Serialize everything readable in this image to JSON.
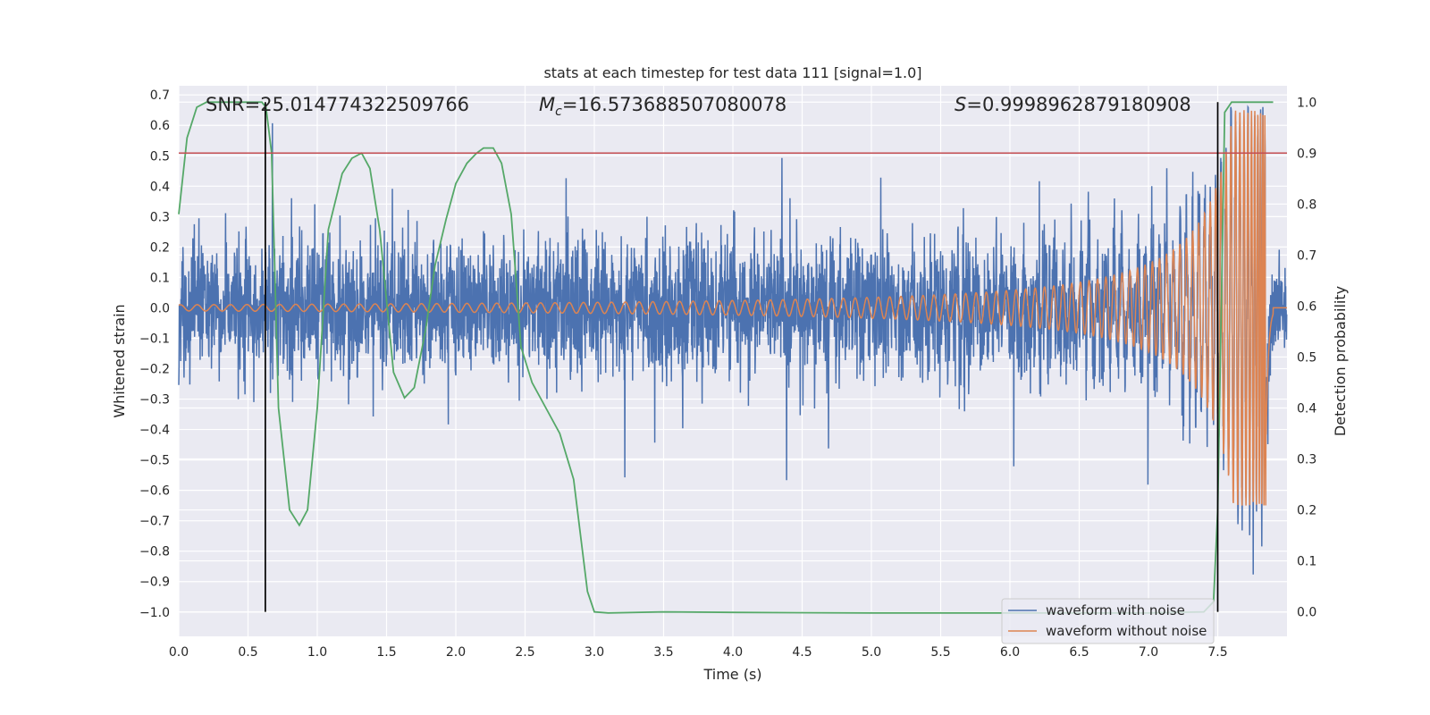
{
  "chart_data": {
    "type": "line",
    "title": "stats at each timestep for test data 111 [signal=1.0]",
    "xlabel": "Time (s)",
    "ylabel": "Whitened strain",
    "y2label": "Detection probability",
    "xlim": [
      0.0,
      8.0
    ],
    "ylim": [
      -1.08,
      0.73
    ],
    "y2lim": [
      -0.048,
      1.032
    ],
    "xticks": [
      0.0,
      0.5,
      1.0,
      1.5,
      2.0,
      2.5,
      3.0,
      3.5,
      4.0,
      4.5,
      5.0,
      5.5,
      6.0,
      6.5,
      7.0,
      7.5
    ],
    "xtick_labels": [
      "0.0",
      "0.5",
      "1.0",
      "1.5",
      "2.0",
      "2.5",
      "3.0",
      "3.5",
      "4.0",
      "4.5",
      "5.0",
      "5.5",
      "6.0",
      "6.5",
      "7.0",
      "7.5"
    ],
    "yticks": [
      0.7,
      0.6,
      0.5,
      0.4,
      0.3,
      0.2,
      0.1,
      0.0,
      -0.1,
      -0.2,
      -0.3,
      -0.4,
      -0.5,
      -0.6,
      -0.7,
      -0.8,
      -0.9,
      -1.0
    ],
    "ytick_labels": [
      "0.7",
      "0.6",
      "0.5",
      "0.4",
      "0.3",
      "0.2",
      "0.1",
      "0.0",
      "−0.1",
      "−0.2",
      "−0.3",
      "−0.4",
      "−0.5",
      "−0.6",
      "−0.7",
      "−0.8",
      "−0.9",
      "−1.0"
    ],
    "y2ticks": [
      1.0,
      0.9,
      0.8,
      0.7,
      0.6,
      0.5,
      0.4,
      0.3,
      0.2,
      0.1,
      0.0
    ],
    "y2tick_labels": [
      "1.0",
      "0.9",
      "0.8",
      "0.7",
      "0.6",
      "0.5",
      "0.4",
      "0.3",
      "0.2",
      "0.1",
      "0.0"
    ],
    "annotations": {
      "snr": "SNR=25.014774322509766",
      "mc_symbol": "M",
      "mc_sub": "c",
      "mc_value": "=16.573688507080078",
      "s_symbol": "S",
      "s_value": "=0.9998962879180908"
    },
    "threshold_prob": 0.9,
    "vlines": [
      0.625,
      7.5
    ],
    "legend": {
      "location": "lower right",
      "entries": [
        {
          "label": "waveform with noise",
          "color": "#4c72b0"
        },
        {
          "label": "waveform without noise",
          "color": "#dd8452"
        }
      ]
    },
    "series": [
      {
        "name": "waveform with noise",
        "axis": "left",
        "color": "#4c72b0",
        "note": "whitened noisy strain; typical envelope about ±0.3 with spikes",
        "envelope": {
          "typical_max": 0.3,
          "typical_min": -0.3,
          "max_spike": 0.66,
          "min_spike": -1.0
        }
      },
      {
        "name": "waveform without noise",
        "axis": "left",
        "color": "#dd8452",
        "note": "chirp signal; amplitude grows from about 0.01 to 0.65 near merger",
        "start_amplitude": 0.01,
        "peak_amplitude": 0.65,
        "peak_time": 7.85,
        "end_time": 7.9
      },
      {
        "name": "detection probability",
        "axis": "right",
        "color": "#55a868",
        "x": [
          0.0,
          0.06,
          0.13,
          0.2,
          0.3,
          0.4,
          0.5,
          0.6,
          0.63,
          0.67,
          0.72,
          0.8,
          0.87,
          0.93,
          1.0,
          1.08,
          1.18,
          1.25,
          1.32,
          1.38,
          1.45,
          1.55,
          1.63,
          1.7,
          1.78,
          1.85,
          1.93,
          2.0,
          2.08,
          2.15,
          2.2,
          2.27,
          2.33,
          2.4,
          2.47,
          2.55,
          2.65,
          2.75,
          2.85,
          2.95,
          3.0,
          3.1,
          3.5,
          4.0,
          5.0,
          6.0,
          7.0,
          7.4,
          7.47,
          7.5,
          7.55,
          7.6,
          7.65,
          7.9
        ],
        "y": [
          0.78,
          0.93,
          0.99,
          1.0,
          1.0,
          1.0,
          1.0,
          1.0,
          0.99,
          0.9,
          0.4,
          0.2,
          0.17,
          0.2,
          0.4,
          0.75,
          0.86,
          0.89,
          0.9,
          0.87,
          0.75,
          0.47,
          0.42,
          0.44,
          0.55,
          0.68,
          0.77,
          0.84,
          0.88,
          0.9,
          0.91,
          0.91,
          0.88,
          0.78,
          0.52,
          0.45,
          0.4,
          0.35,
          0.26,
          0.04,
          0.0,
          -0.002,
          0.0,
          -0.001,
          -0.002,
          -0.002,
          -0.002,
          0.0,
          0.02,
          0.2,
          0.98,
          1.0,
          1.0,
          1.0
        ]
      },
      {
        "name": "threshold",
        "axis": "right",
        "color": "#c44e52",
        "value": 0.9
      }
    ]
  }
}
